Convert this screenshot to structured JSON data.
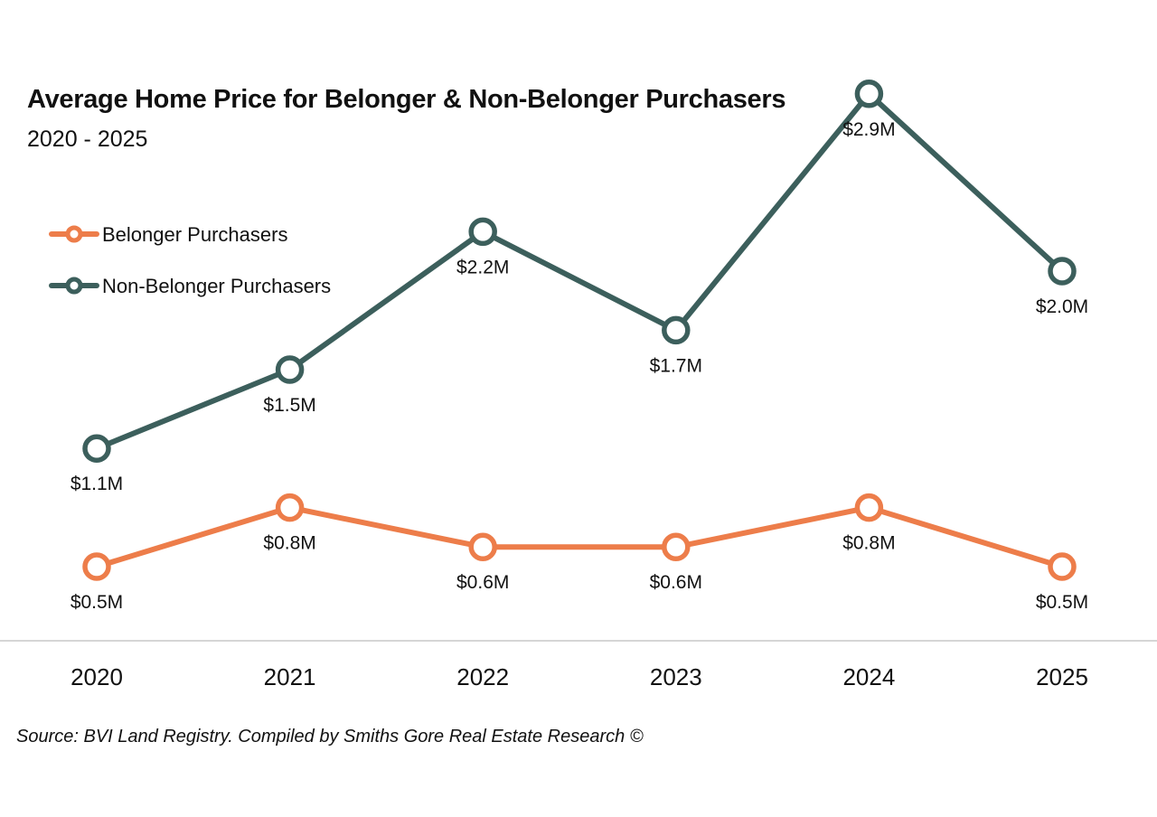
{
  "chart_data": {
    "type": "line",
    "title": "Average Home Price for Belonger & Non-Belonger Purchasers",
    "subtitle": "2020 - 2025",
    "categories": [
      "2020",
      "2021",
      "2022",
      "2023",
      "2024",
      "2025"
    ],
    "series": [
      {
        "name": "Belonger Purchasers",
        "color": "#ED7D4A",
        "values": [
          0.5,
          0.8,
          0.6,
          0.6,
          0.8,
          0.5
        ],
        "labels": [
          "$0.5M",
          "$0.8M",
          "$0.6M",
          "$0.6M",
          "$0.8M",
          "$0.5M"
        ]
      },
      {
        "name": "Non-Belonger Purchasers",
        "color": "#3C5F5C",
        "values": [
          1.1,
          1.5,
          2.2,
          1.7,
          2.9,
          2.0
        ],
        "labels": [
          "$1.1M",
          "$1.5M",
          "$2.2M",
          "$1.7M",
          "$2.9M",
          "$2.0M"
        ]
      }
    ],
    "ylim": [
      0,
      3.1
    ],
    "xlabel": "",
    "ylabel": "",
    "grid": false,
    "legend_position": "top-left",
    "source": "Source: BVI Land Registry. Compiled by Smiths Gore Real Estate Research ©"
  }
}
